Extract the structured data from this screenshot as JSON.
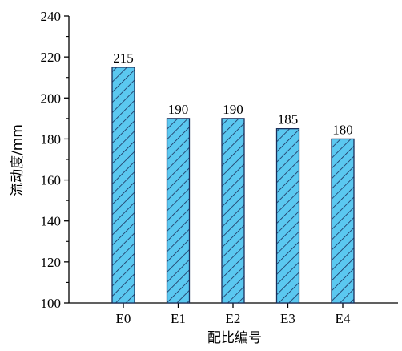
{
  "chart_data": {
    "type": "bar",
    "title": "",
    "xlabel": "配比编号",
    "ylabel": "流动度/mm",
    "categories": [
      "E0",
      "E1",
      "E2",
      "E3",
      "E4"
    ],
    "values": [
      215,
      190,
      190,
      185,
      180
    ],
    "data_labels": [
      "215",
      "190",
      "190",
      "185",
      "180"
    ],
    "ylim": [
      100,
      240
    ],
    "yticks": [
      100,
      120,
      140,
      160,
      180,
      200,
      220,
      240
    ],
    "grid": false,
    "legend": "none",
    "bar_fill_color": "#5bc8f0",
    "bar_hatch_color": "#1a2e5a",
    "bar_edge_color": "#1a2e5a"
  }
}
